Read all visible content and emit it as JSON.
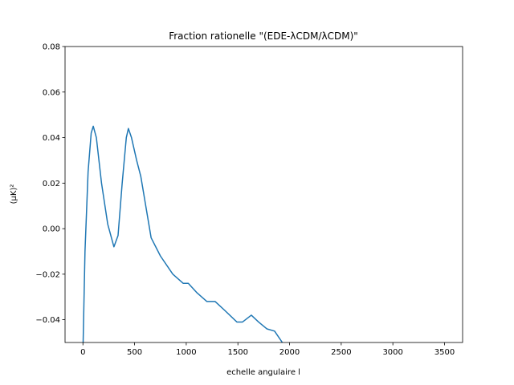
{
  "chart_data": {
    "type": "line",
    "title": "Fraction rationelle \"(EDE-λCDM/λCDM)\"",
    "x_label": "echelle angulaire l",
    "y_label": "(μK)²",
    "color": "#1f77b4",
    "x": [
      2,
      20,
      50,
      80,
      100,
      130,
      180,
      240,
      300,
      340,
      380,
      420,
      440,
      470,
      520,
      560,
      660,
      750,
      870,
      970,
      1020,
      1100,
      1200,
      1280,
      1375,
      1490,
      1545,
      1630,
      1700,
      1780,
      1855,
      1930
    ],
    "values": [
      -0.05,
      -0.01,
      0.025,
      0.042,
      0.045,
      0.04,
      0.02,
      0.002,
      -0.008,
      -0.003,
      0.02,
      0.04,
      0.044,
      0.04,
      0.03,
      0.023,
      -0.004,
      -0.012,
      -0.02,
      -0.024,
      -0.024,
      -0.028,
      -0.032,
      -0.032,
      -0.036,
      -0.041,
      -0.041,
      -0.038,
      -0.041,
      -0.044,
      -0.045,
      -0.05
    ],
    "xlim": [
      -173,
      3675
    ],
    "ylim": [
      -0.05,
      0.08
    ],
    "xticks": [
      0,
      500,
      1000,
      1500,
      2000,
      2500,
      3000,
      3500
    ],
    "yticks": [
      {
        "value": -0.04,
        "label": "−0.04"
      },
      {
        "value": -0.02,
        "label": "−0.02"
      },
      {
        "value": 0,
        "label": "0.00"
      },
      0.02,
      0.04,
      0.06,
      0.08
    ]
  }
}
